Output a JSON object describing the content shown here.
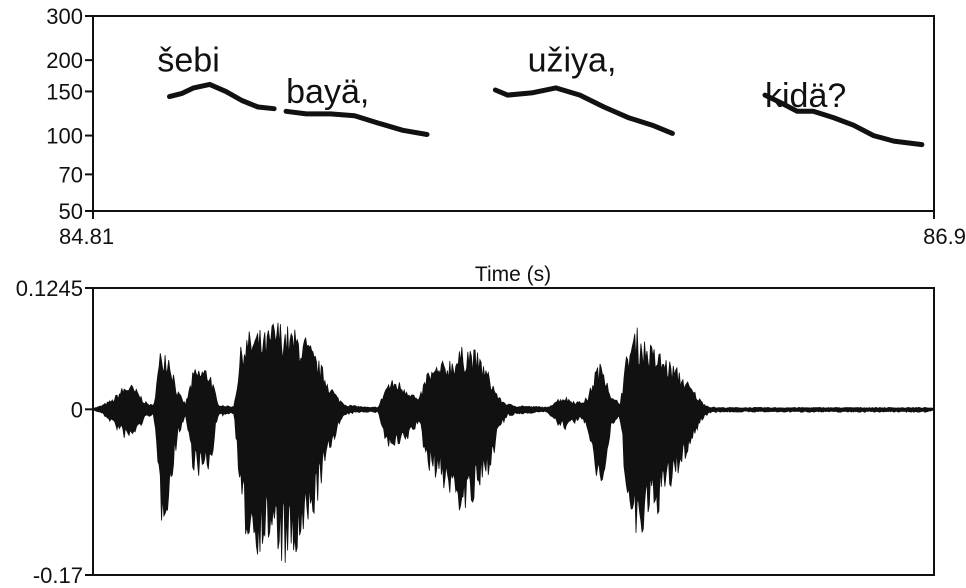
{
  "chart_data": [
    {
      "type": "line",
      "panel": "pitch",
      "xlim": [
        84.81,
        86.9
      ],
      "x_tick_labels": [
        "84.81",
        "86.9"
      ],
      "xlabel": "Time (s)",
      "y_scale": "log",
      "ylim": [
        50,
        300
      ],
      "y_ticks": [
        300,
        200,
        150,
        100,
        70,
        50
      ],
      "y_tick_labels": [
        "300",
        "200",
        "150",
        "100",
        "70",
        "50"
      ],
      "annotations": [
        {
          "text": "šebi",
          "x": 84.97,
          "y": 180
        },
        {
          "text": "bayä,",
          "x": 85.29,
          "y": 135
        },
        {
          "text": "užiya,",
          "x": 85.89,
          "y": 180
        },
        {
          "text": "kidä?",
          "x": 86.48,
          "y": 130
        }
      ],
      "segments": [
        {
          "x": [
            85.0,
            85.03,
            85.06,
            85.1,
            85.14,
            85.18,
            85.22,
            85.26
          ],
          "y": [
            143,
            147,
            155,
            160,
            150,
            138,
            130,
            128
          ]
        },
        {
          "x": [
            85.29,
            85.34,
            85.4,
            85.46,
            85.52,
            85.58,
            85.64
          ],
          "y": [
            125,
            122,
            122,
            120,
            112,
            105,
            101
          ]
        },
        {
          "x": [
            85.81,
            85.84,
            85.9,
            85.96,
            86.02,
            86.08,
            86.14,
            86.2,
            86.25
          ],
          "y": [
            152,
            145,
            148,
            155,
            145,
            130,
            118,
            110,
            102
          ]
        },
        {
          "x": [
            86.48,
            86.52,
            86.56,
            86.6,
            86.65,
            86.7,
            86.75,
            86.8,
            86.87
          ],
          "y": [
            145,
            135,
            125,
            125,
            118,
            110,
            100,
            95,
            92
          ]
        }
      ]
    },
    {
      "type": "area",
      "panel": "waveform",
      "xlim": [
        84.81,
        86.9
      ],
      "ylim": [
        -0.17,
        0.1245
      ],
      "y_tick_labels": [
        "0.1245",
        "0",
        "-0.17"
      ],
      "y_ticks": [
        0.1245,
        0,
        -0.17
      ],
      "x": [
        84.81,
        84.83,
        84.86,
        84.88,
        84.9,
        84.92,
        84.94,
        84.96,
        84.98,
        85.0,
        85.02,
        85.04,
        85.06,
        85.08,
        85.1,
        85.12,
        85.14,
        85.16,
        85.18,
        85.2,
        85.22,
        85.24,
        85.26,
        85.28,
        85.3,
        85.32,
        85.34,
        85.36,
        85.38,
        85.4,
        85.42,
        85.44,
        85.46,
        85.48,
        85.5,
        85.52,
        85.54,
        85.56,
        85.58,
        85.6,
        85.62,
        85.64,
        85.66,
        85.68,
        85.7,
        85.72,
        85.74,
        85.76,
        85.78,
        85.8,
        85.82,
        85.84,
        85.86,
        85.88,
        85.9,
        85.92,
        85.94,
        85.96,
        85.98,
        86.0,
        86.02,
        86.04,
        86.06,
        86.08,
        86.1,
        86.12,
        86.14,
        86.16,
        86.18,
        86.2,
        86.22,
        86.24,
        86.26,
        86.28,
        86.3,
        86.32,
        86.34,
        86.36,
        86.38,
        86.4,
        86.42,
        86.44,
        86.46,
        86.48,
        86.5,
        86.52,
        86.54,
        86.56,
        86.58,
        86.6,
        86.62,
        86.64,
        86.66,
        86.68,
        86.7,
        86.72,
        86.74,
        86.76,
        86.78,
        86.8,
        86.82,
        86.84,
        86.86,
        86.88,
        86.9
      ],
      "upper": [
        0.001,
        0.004,
        0.011,
        0.022,
        0.028,
        0.02,
        0.008,
        0.004,
        0.07,
        0.062,
        0.02,
        0.006,
        0.042,
        0.045,
        0.044,
        0.006,
        0.004,
        0.003,
        0.074,
        0.082,
        0.084,
        0.08,
        0.094,
        0.092,
        0.085,
        0.082,
        0.076,
        0.06,
        0.044,
        0.026,
        0.012,
        0.005,
        0.004,
        0.003,
        0.002,
        0.003,
        0.028,
        0.032,
        0.027,
        0.02,
        0.01,
        0.04,
        0.045,
        0.05,
        0.056,
        0.062,
        0.07,
        0.062,
        0.05,
        0.032,
        0.012,
        0.006,
        0.004,
        0.004,
        0.003,
        0.003,
        0.002,
        0.01,
        0.014,
        0.01,
        0.008,
        0.013,
        0.045,
        0.05,
        0.012,
        0.008,
        0.068,
        0.086,
        0.074,
        0.066,
        0.06,
        0.052,
        0.044,
        0.034,
        0.022,
        0.01,
        0.003,
        0.002,
        0.002,
        0.002,
        0.002,
        0.002,
        0.002,
        0.002,
        0.002,
        0.002,
        0.002,
        0.002,
        0.002,
        0.002,
        0.002,
        0.002,
        0.002,
        0.002,
        0.002,
        0.002,
        0.002,
        0.002,
        0.002,
        0.002,
        0.002,
        0.002,
        0.002,
        0.002,
        0.001
      ],
      "lower": [
        -0.001,
        -0.004,
        -0.016,
        -0.028,
        -0.034,
        -0.024,
        -0.01,
        -0.005,
        -0.12,
        -0.1,
        -0.03,
        -0.008,
        -0.066,
        -0.072,
        -0.07,
        -0.008,
        -0.006,
        -0.004,
        -0.126,
        -0.14,
        -0.15,
        -0.142,
        -0.15,
        -0.162,
        -0.17,
        -0.16,
        -0.14,
        -0.11,
        -0.076,
        -0.044,
        -0.018,
        -0.006,
        -0.004,
        -0.003,
        -0.003,
        -0.004,
        -0.042,
        -0.044,
        -0.04,
        -0.028,
        -0.014,
        -0.062,
        -0.07,
        -0.082,
        -0.094,
        -0.106,
        -0.11,
        -0.1,
        -0.082,
        -0.058,
        -0.022,
        -0.008,
        -0.006,
        -0.005,
        -0.004,
        -0.003,
        -0.003,
        -0.016,
        -0.022,
        -0.016,
        -0.012,
        -0.022,
        -0.074,
        -0.082,
        -0.016,
        -0.012,
        -0.11,
        -0.15,
        -0.13,
        -0.118,
        -0.104,
        -0.09,
        -0.074,
        -0.054,
        -0.034,
        -0.014,
        -0.004,
        -0.003,
        -0.003,
        -0.003,
        -0.003,
        -0.003,
        -0.003,
        -0.003,
        -0.003,
        -0.003,
        -0.003,
        -0.003,
        -0.003,
        -0.003,
        -0.003,
        -0.003,
        -0.003,
        -0.003,
        -0.003,
        -0.003,
        -0.003,
        -0.003,
        -0.003,
        -0.003,
        -0.003,
        -0.003,
        -0.003,
        -0.003,
        -0.001
      ]
    }
  ]
}
